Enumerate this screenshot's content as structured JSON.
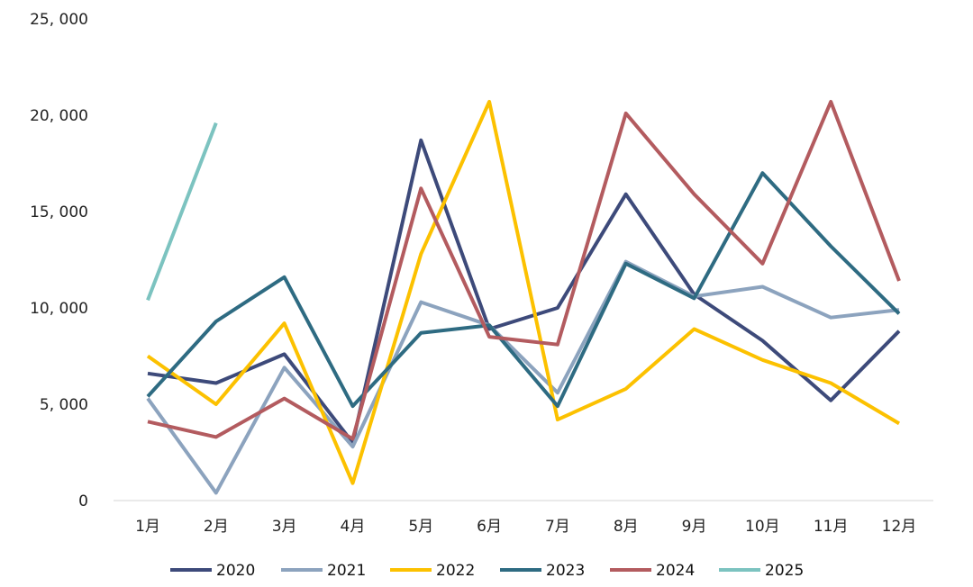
{
  "chart_data": {
    "type": "line",
    "title": "",
    "xlabel": "",
    "ylabel": "",
    "categories": [
      "1月",
      "2月",
      "3月",
      "4月",
      "5月",
      "6月",
      "7月",
      "8月",
      "9月",
      "10月",
      "11月",
      "12月"
    ],
    "ylim": [
      0,
      25000
    ],
    "yticks": [
      0,
      5000,
      10000,
      15000,
      20000,
      25000
    ],
    "ytick_labels": [
      "0",
      "5, 000",
      "10, 000",
      "15, 000",
      "20, 000",
      "25, 000"
    ],
    "grid": false,
    "legend_position": "bottom",
    "series": [
      {
        "name": "2020",
        "color": "#3d4a7a",
        "values": [
          6600,
          6100,
          7600,
          3000,
          18700,
          8900,
          10000,
          15900,
          10700,
          8300,
          5200,
          8800
        ]
      },
      {
        "name": "2021",
        "color": "#8ca3be",
        "values": [
          5300,
          400,
          6900,
          2800,
          10300,
          9100,
          5600,
          12400,
          10600,
          11100,
          9500,
          9900
        ]
      },
      {
        "name": "2022",
        "color": "#fcc100",
        "values": [
          7500,
          5000,
          9200,
          900,
          12800,
          20700,
          4200,
          5800,
          8900,
          7300,
          6100,
          4000
        ]
      },
      {
        "name": "2023",
        "color": "#2e6b82",
        "values": [
          5400,
          9300,
          11600,
          4900,
          8700,
          9100,
          4900,
          12300,
          10500,
          17000,
          13200,
          9700
        ]
      },
      {
        "name": "2024",
        "color": "#b35b5f",
        "values": [
          4100,
          3300,
          5300,
          3200,
          16200,
          8500,
          8100,
          20100,
          15900,
          12300,
          20700,
          11400
        ]
      },
      {
        "name": "2025",
        "color": "#7cc3c0",
        "values": [
          10400,
          19600,
          null,
          null,
          null,
          null,
          null,
          null,
          null,
          null,
          null,
          null
        ]
      }
    ]
  }
}
